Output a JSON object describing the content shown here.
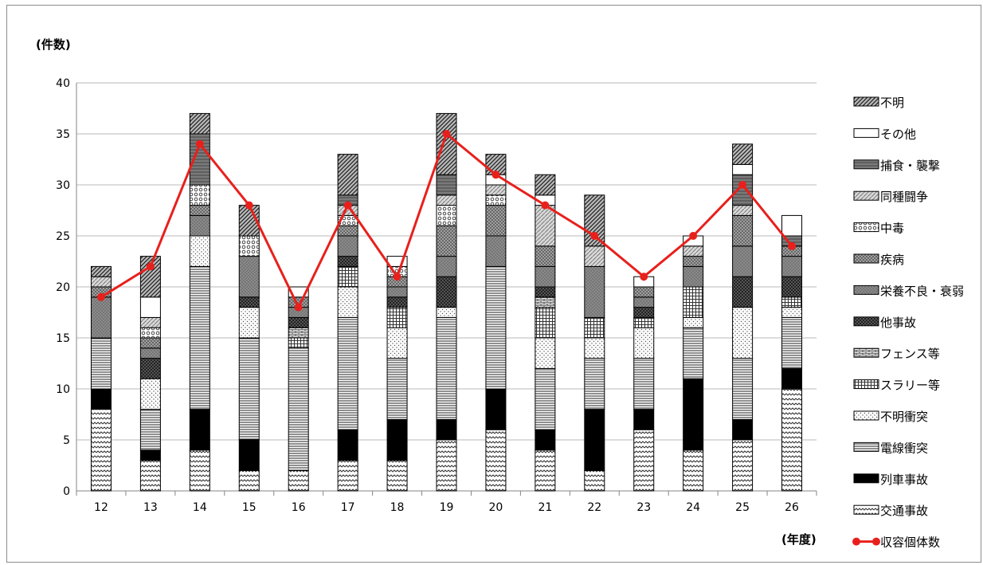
{
  "chart_data": {
    "type": "bar",
    "stacked": true,
    "ylabel": "(件数)",
    "xlabel": "(年度)",
    "ylim": [
      0,
      40
    ],
    "yticks": [
      0,
      5,
      10,
      15,
      20,
      25,
      30,
      35,
      40
    ],
    "grid": true,
    "legend_position": "right",
    "categories": [
      "12",
      "13",
      "14",
      "15",
      "16",
      "17",
      "18",
      "19",
      "20",
      "21",
      "22",
      "23",
      "24",
      "25",
      "26"
    ],
    "series": [
      {
        "name": "交通事故",
        "pattern": "wave",
        "values": [
          8,
          3,
          4,
          2,
          2,
          3,
          3,
          5,
          6,
          4,
          2,
          6,
          4,
          5,
          10
        ]
      },
      {
        "name": "列車事故",
        "pattern": "solid",
        "values": [
          2,
          1,
          4,
          3,
          0,
          3,
          4,
          2,
          4,
          2,
          6,
          2,
          7,
          2,
          2
        ]
      },
      {
        "name": "電線衝突",
        "pattern": "hlines",
        "values": [
          5,
          4,
          14,
          10,
          12,
          11,
          6,
          10,
          12,
          6,
          5,
          5,
          5,
          6,
          5
        ]
      },
      {
        "name": "不明衝突",
        "pattern": "dots",
        "values": [
          0,
          3,
          3,
          3,
          0,
          3,
          3,
          1,
          0,
          3,
          2,
          3,
          1,
          5,
          1
        ]
      },
      {
        "name": "スラリー等",
        "pattern": "grid",
        "values": [
          0,
          0,
          0,
          0,
          1,
          2,
          2,
          0,
          0,
          3,
          2,
          1,
          3,
          0,
          1
        ]
      },
      {
        "name": "フェンス等",
        "pattern": "brick",
        "values": [
          0,
          0,
          0,
          0,
          1,
          0,
          0,
          0,
          0,
          1,
          0,
          0,
          0,
          0,
          0
        ]
      },
      {
        "name": "他事故",
        "pattern": "checker",
        "values": [
          0,
          2,
          0,
          1,
          1,
          1,
          1,
          3,
          0,
          1,
          0,
          1,
          0,
          3,
          2
        ]
      },
      {
        "name": "栄養不良・衰弱",
        "pattern": "gray",
        "values": [
          4,
          1,
          2,
          4,
          1,
          2,
          1,
          2,
          3,
          2,
          5,
          1,
          2,
          3,
          2
        ]
      },
      {
        "name": "疾病",
        "pattern": "graydots",
        "values": [
          1,
          1,
          1,
          0,
          1,
          1,
          1,
          3,
          3,
          2,
          0,
          1,
          1,
          3,
          1
        ]
      },
      {
        "name": "中毒",
        "pattern": "circles",
        "values": [
          0,
          1,
          2,
          2,
          0,
          1,
          1,
          2,
          1,
          0,
          0,
          0,
          0,
          0,
          0
        ]
      },
      {
        "name": "同種闘争",
        "pattern": "lightdiag",
        "values": [
          1,
          1,
          0,
          0,
          0,
          1,
          0,
          1,
          1,
          4,
          2,
          0,
          1,
          1,
          0
        ]
      },
      {
        "name": "捕食・襲撃",
        "pattern": "stripes",
        "values": [
          0,
          0,
          5,
          0,
          0,
          1,
          0,
          2,
          0,
          0,
          0,
          0,
          0,
          3,
          1
        ]
      },
      {
        "name": "その他",
        "pattern": "white",
        "values": [
          0,
          2,
          0,
          0,
          1,
          0,
          1,
          0,
          1,
          1,
          0,
          1,
          1,
          1,
          2
        ]
      },
      {
        "name": "不明",
        "pattern": "diag",
        "values": [
          1,
          4,
          2,
          3,
          0,
          4,
          0,
          6,
          2,
          2,
          5,
          0,
          0,
          2,
          0
        ]
      }
    ],
    "line_series": {
      "name": "収容個体数",
      "color": "#e8201c",
      "values": [
        19,
        22,
        34,
        28,
        18,
        28,
        21,
        35,
        31,
        28,
        25,
        21,
        25,
        30,
        24
      ]
    }
  }
}
